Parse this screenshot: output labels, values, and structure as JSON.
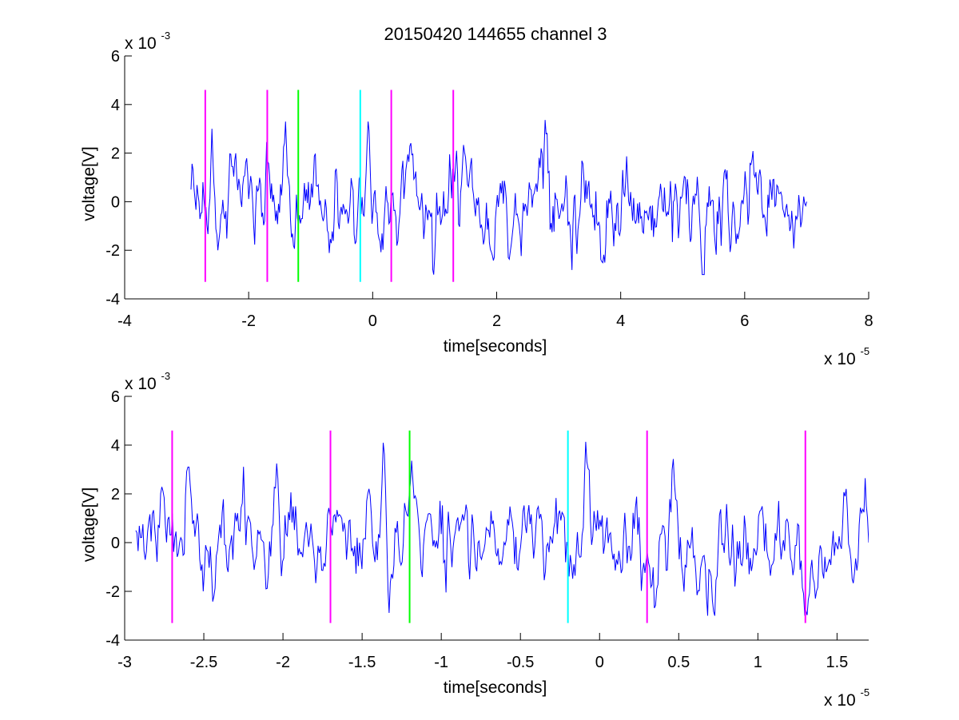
{
  "figure": {
    "title": "20150420 144655 channel 3"
  },
  "chart_data": [
    {
      "type": "line",
      "title": "20150420 144655 channel 3",
      "xlabel": "time[seconds]",
      "ylabel": "voltage[V]",
      "x_scale_label": "x 10",
      "x_scale_exp": "-5",
      "y_scale_label": "x 10",
      "y_scale_exp": "-3",
      "xlim": [
        -4,
        8
      ],
      "ylim": [
        -4,
        6
      ],
      "xticks": [
        -4,
        -2,
        0,
        2,
        4,
        6,
        8
      ],
      "xtick_labels": [
        "-4",
        "-2",
        "0",
        "2",
        "4",
        "6",
        "8"
      ],
      "yticks": [
        -4,
        -2,
        0,
        2,
        4,
        6
      ],
      "ytick_labels": [
        "-4",
        "-2",
        "0",
        "2",
        "4",
        "6"
      ],
      "grid": false,
      "series": [
        {
          "color": "#0000ff",
          "x_range": [
            -2.93,
            7.0
          ],
          "samples": 620,
          "key_points": [
            [
              -2.93,
              0.5
            ],
            [
              -2.6,
              3.0
            ],
            [
              -2.5,
              -2.0
            ],
            [
              -1.4,
              3.3
            ],
            [
              -0.07,
              3.3
            ],
            [
              1.0,
              -2.3
            ],
            [
              2.8,
              2.8
            ],
            [
              5.33,
              -3.0
            ],
            [
              7.0,
              0.0
            ]
          ]
        }
      ],
      "vlines": [
        {
          "x": -2.7,
          "color": "#ff00ff",
          "ymin": -3.3,
          "ymax": 4.6
        },
        {
          "x": -1.7,
          "color": "#ff00ff",
          "ymin": -3.3,
          "ymax": 4.6
        },
        {
          "x": -1.2,
          "color": "#00ff00",
          "ymin": -3.3,
          "ymax": 4.6
        },
        {
          "x": -0.2,
          "color": "#00ffff",
          "ymin": -3.3,
          "ymax": 4.6
        },
        {
          "x": 0.3,
          "color": "#ff00ff",
          "ymin": -3.3,
          "ymax": 4.6
        },
        {
          "x": 1.3,
          "color": "#ff00ff",
          "ymin": -3.3,
          "ymax": 4.6
        }
      ]
    },
    {
      "type": "line",
      "xlabel": "time[seconds]",
      "ylabel": "voltage[V]",
      "x_scale_label": "x 10",
      "x_scale_exp": "-5",
      "y_scale_label": "x 10",
      "y_scale_exp": "-3",
      "xlim": [
        -3.0,
        1.7
      ],
      "ylim": [
        -4,
        6
      ],
      "xticks": [
        -3,
        -2.5,
        -2,
        -1.5,
        -1,
        -0.5,
        0,
        0.5,
        1,
        1.5
      ],
      "xtick_labels": [
        "-3",
        "-2.5",
        "-2",
        "-1.5",
        "-1",
        "-0.5",
        "0",
        "0.5",
        "1",
        "1.5"
      ],
      "yticks": [
        -4,
        -2,
        0,
        2,
        4,
        6
      ],
      "ytick_labels": [
        "-4",
        "-2",
        "0",
        "2",
        "4",
        "6"
      ],
      "grid": false,
      "series": [
        {
          "color": "#0000ff",
          "x_range": [
            -2.93,
            1.7
          ],
          "samples": 620,
          "key_points": [
            [
              -2.93,
              0.5
            ],
            [
              -2.6,
              3.1
            ],
            [
              -2.5,
              -2.0
            ],
            [
              -1.37,
              4.1
            ],
            [
              -0.08,
              3.3
            ],
            [
              0.47,
              2.4
            ],
            [
              1.3,
              -2.8
            ],
            [
              1.55,
              1.9
            ],
            [
              1.7,
              0.0
            ]
          ]
        }
      ],
      "vlines": [
        {
          "x": -2.7,
          "color": "#ff00ff",
          "ymin": -3.3,
          "ymax": 4.6
        },
        {
          "x": -1.7,
          "color": "#ff00ff",
          "ymin": -3.3,
          "ymax": 4.6
        },
        {
          "x": -1.2,
          "color": "#00ff00",
          "ymin": -3.3,
          "ymax": 4.6
        },
        {
          "x": -0.2,
          "color": "#00ffff",
          "ymin": -3.3,
          "ymax": 4.6
        },
        {
          "x": 0.3,
          "color": "#ff00ff",
          "ymin": -3.3,
          "ymax": 4.6
        },
        {
          "x": 1.3,
          "color": "#ff00ff",
          "ymin": -3.3,
          "ymax": 4.6
        }
      ]
    }
  ]
}
